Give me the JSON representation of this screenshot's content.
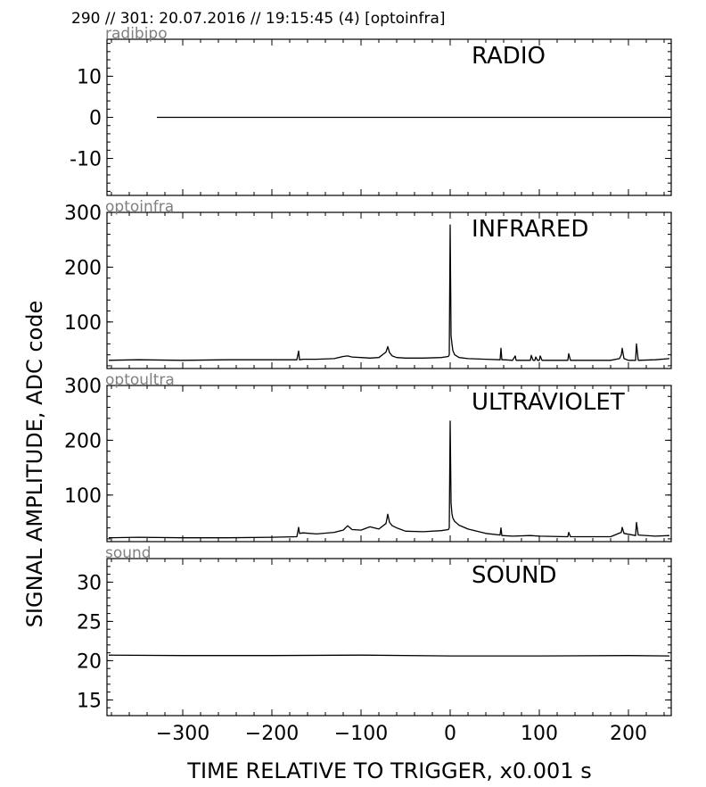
{
  "header": {
    "text": "290 // 301:   20.07.2016 // 19:15:45 (4)  [optoinfra]"
  },
  "xlabel": "TIME RELATIVE TO TRIGGER,   x0.001 s",
  "ylabel": "SIGNAL AMPLITUDE,  ADC code",
  "chart_data": [
    {
      "type": "line",
      "label": "radibipo",
      "title": "RADIO",
      "xlim": [
        -385,
        248
      ],
      "ylim": [
        -19,
        19
      ],
      "xticks": [
        -300,
        -200,
        -100,
        0,
        100,
        200
      ],
      "yticks": [
        -10,
        0,
        10
      ],
      "ytick_labels": [
        "-10",
        "0",
        "10"
      ],
      "series": [
        {
          "x": [
            -329,
            247
          ],
          "y": [
            0,
            0
          ]
        }
      ]
    },
    {
      "type": "line",
      "label": "optoinfra",
      "title": "INFRARED",
      "xlim": [
        -385,
        248
      ],
      "ylim": [
        15,
        300
      ],
      "xticks": [
        -300,
        -200,
        -100,
        0,
        100,
        200
      ],
      "yticks": [
        100,
        200,
        300
      ],
      "ytick_labels": [
        "100",
        "200",
        "300"
      ],
      "series": [
        {
          "x": [
            -383,
            -350,
            -300,
            -250,
            -200,
            -172,
            -170,
            -169,
            -165,
            -150,
            -130,
            -120,
            -115,
            -110,
            -100,
            -90,
            -80,
            -72,
            -70,
            -68,
            -65,
            -60,
            -50,
            -30,
            -10,
            -2,
            -1,
            0,
            1,
            2,
            3,
            5,
            10,
            20,
            40,
            56,
            57,
            58,
            60,
            70,
            73,
            74,
            76,
            90,
            91,
            93,
            95,
            96,
            98,
            100,
            101,
            103,
            120,
            132,
            133,
            135,
            150,
            180,
            190,
            192,
            193,
            195,
            200,
            208,
            209,
            211,
            230,
            246
          ],
          "y": [
            30,
            31,
            30,
            31,
            31,
            31,
            47,
            31,
            32,
            32,
            33,
            37,
            38,
            36,
            35,
            34,
            35,
            45,
            55,
            44,
            38,
            35,
            34,
            34,
            35,
            37,
            40,
            277,
            75,
            60,
            48,
            40,
            35,
            33,
            32,
            31,
            52,
            31,
            31,
            30,
            38,
            30,
            30,
            30,
            39,
            30,
            30,
            36,
            30,
            30,
            38,
            30,
            30,
            30,
            42,
            30,
            30,
            30,
            33,
            40,
            52,
            33,
            30,
            30,
            60,
            30,
            31,
            33
          ]
        }
      ]
    },
    {
      "type": "line",
      "label": "optoultra",
      "title": "ULTRAVIOLET",
      "xlim": [
        -385,
        248
      ],
      "ylim": [
        15,
        300
      ],
      "xticks": [
        -300,
        -200,
        -100,
        0,
        100,
        200
      ],
      "yticks": [
        100,
        200,
        300
      ],
      "ytick_labels": [
        "100",
        "200",
        "300"
      ],
      "series": [
        {
          "x": [
            -383,
            -350,
            -300,
            -250,
            -200,
            -172,
            -170,
            -169,
            -165,
            -150,
            -130,
            -120,
            -115,
            -110,
            -100,
            -90,
            -80,
            -72,
            -70,
            -68,
            -65,
            -60,
            -50,
            -30,
            -10,
            -2,
            -1,
            0,
            1,
            2,
            3,
            5,
            10,
            20,
            40,
            56,
            57,
            58,
            70,
            90,
            100,
            132,
            133,
            135,
            180,
            192,
            193,
            195,
            208,
            209,
            211,
            230,
            246
          ],
          "y": [
            22,
            23,
            22,
            22,
            23,
            24,
            41,
            30,
            31,
            29,
            32,
            36,
            44,
            37,
            36,
            42,
            38,
            48,
            65,
            50,
            44,
            40,
            34,
            33,
            35,
            37,
            40,
            235,
            86,
            66,
            58,
            52,
            45,
            38,
            30,
            27,
            40,
            26,
            25,
            26,
            25,
            24,
            32,
            24,
            24,
            32,
            41,
            30,
            26,
            50,
            27,
            25,
            26
          ]
        }
      ]
    },
    {
      "type": "line",
      "label": "sound",
      "title": "SOUND",
      "xlim": [
        -385,
        248
      ],
      "ylim": [
        13,
        33
      ],
      "xticks": [
        -300,
        -200,
        -100,
        0,
        100,
        200
      ],
      "yticks": [
        15,
        20,
        25,
        30
      ],
      "ytick_labels": [
        "15",
        "20",
        "25",
        "30"
      ],
      "xtick_labels": [
        "−300",
        "−200",
        "−100",
        "0",
        "100",
        "200"
      ],
      "series": [
        {
          "x": [
            -383,
            -300,
            -200,
            -100,
            0,
            100,
            200,
            246
          ],
          "y": [
            20.7,
            20.65,
            20.65,
            20.7,
            20.6,
            20.6,
            20.65,
            20.6
          ]
        }
      ]
    }
  ]
}
